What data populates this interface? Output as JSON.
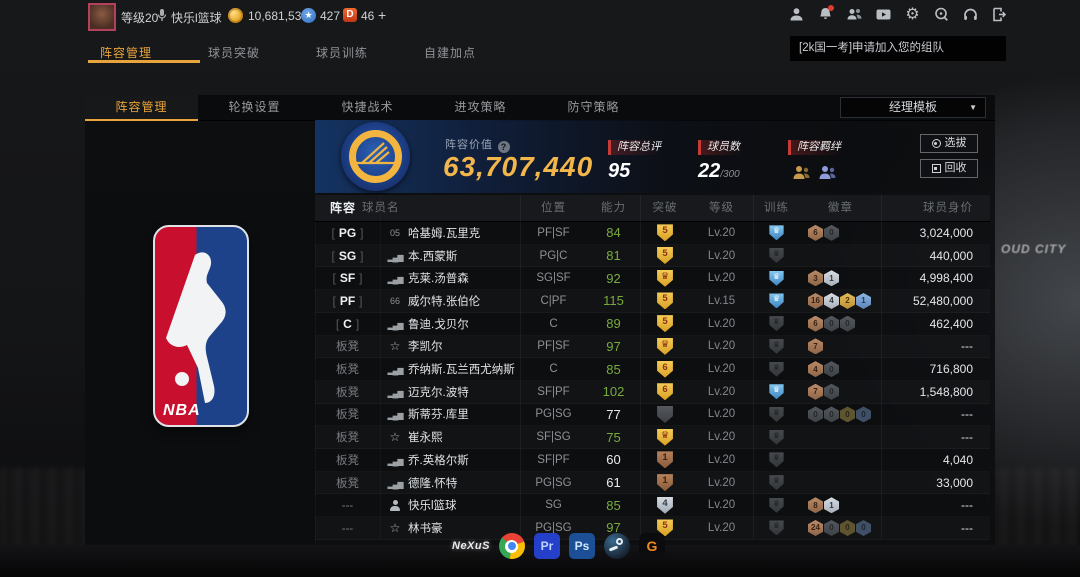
{
  "top_bar": {
    "level": "等级20",
    "username": "快乐l篮球",
    "coins": "10,681,538",
    "stars": "427",
    "diamond_letter": "D",
    "diamonds": "46",
    "plus": "+",
    "header_icons": [
      "user",
      "bell",
      "team",
      "video",
      "settings",
      "support",
      "headset",
      "exit"
    ]
  },
  "nav_tabs": [
    {
      "label": "阵容管理",
      "cls": "active"
    },
    {
      "label": "球员突破",
      "cls": ""
    },
    {
      "label": "球员训练",
      "cls": ""
    },
    {
      "label": "自建加点",
      "cls": ""
    }
  ],
  "notification": {
    "text": "[2k国一考]申请加入您的组队"
  },
  "background_text": "OUD CITY",
  "panel": {
    "tabs": [
      {
        "label": "阵容管理",
        "cls": "active"
      },
      {
        "label": "轮换设置",
        "cls": ""
      },
      {
        "label": "快捷战术",
        "cls": ""
      },
      {
        "label": "进攻策略",
        "cls": ""
      },
      {
        "label": "防守策略",
        "cls": ""
      }
    ],
    "template_dropdown": "经理模板",
    "nba_logo_text": "NBA",
    "header": {
      "value_label": "阵容价值",
      "value_help": "?",
      "value": "63,707,440",
      "stats": [
        {
          "label": "阵容总评",
          "value": "95",
          "suffix": ""
        },
        {
          "label": "球员数",
          "value": "22",
          "suffix": "/300"
        },
        {
          "label": "阵容羁绊",
          "value": "",
          "suffix": ""
        }
      ],
      "buttons": [
        {
          "label": "选拔",
          "icon_cls": "bi-select"
        },
        {
          "label": "回收",
          "icon_cls": "bi-recycle"
        }
      ]
    },
    "table": {
      "headers": [
        "阵容",
        "球员名",
        "位置",
        "能力",
        "突破",
        "等级",
        "训练",
        "徽章",
        "球员身价"
      ],
      "rows": [
        {
          "slot": "PG",
          "slot_cls": "slot-starter",
          "icon_cls": "icon-num",
          "icon_text": "05",
          "name": "哈基姆.瓦里克",
          "pos": "PF|SF",
          "ability": "84",
          "ab_cls": "ab-green",
          "bt_cls": "t-gold",
          "bt_glyph": "5",
          "level": "Lv.20",
          "train_cls": "tr-blue",
          "badges": [
            {
              "tier": "bronze",
              "n": "6"
            },
            {
              "tier": "gray",
              "n": "0"
            }
          ],
          "price": "3,024,000"
        },
        {
          "slot": "SG",
          "slot_cls": "slot-starter",
          "icon_cls": "icon-bars",
          "icon_text": "",
          "name": "本.西蒙斯",
          "pos": "PG|C",
          "ability": "81",
          "ab_cls": "ab-green",
          "bt_cls": "t-gold",
          "bt_glyph": "5",
          "level": "Lv.20",
          "train_cls": "tr-gray",
          "badges": [],
          "price": "440,000"
        },
        {
          "slot": "SF",
          "slot_cls": "slot-starter",
          "icon_cls": "icon-bars",
          "icon_text": "",
          "name": "克莱.汤普森",
          "pos": "SG|SF",
          "ability": "92",
          "ab_cls": "ab-green",
          "bt_cls": "t-gold",
          "bt_glyph": "♛",
          "level": "Lv.20",
          "train_cls": "tr-blue",
          "badges": [
            {
              "tier": "bronze",
              "n": "3"
            },
            {
              "tier": "silver",
              "n": "1"
            }
          ],
          "price": "4,998,400"
        },
        {
          "slot": "PF",
          "slot_cls": "slot-starter",
          "icon_cls": "icon-num",
          "icon_text": "66",
          "name": "威尔特.张伯伦",
          "pos": "C|PF",
          "ability": "115",
          "ab_cls": "ab-green",
          "bt_cls": "t-gold",
          "bt_glyph": "5",
          "level": "Lv.15",
          "train_cls": "tr-blue",
          "badges": [
            {
              "tier": "bronze",
              "n": "16"
            },
            {
              "tier": "silver",
              "n": "4"
            },
            {
              "tier": "gold",
              "n": "2"
            },
            {
              "tier": "blue",
              "n": "1"
            }
          ],
          "price": "52,480,000"
        },
        {
          "slot": "C",
          "slot_cls": "slot-starter",
          "icon_cls": "icon-bars",
          "icon_text": "",
          "name": "鲁迪.戈贝尔",
          "pos": "C",
          "ability": "89",
          "ab_cls": "ab-green",
          "bt_cls": "t-gold",
          "bt_glyph": "5",
          "level": "Lv.20",
          "train_cls": "tr-gray",
          "badges": [
            {
              "tier": "bronze",
              "n": "6"
            },
            {
              "tier": "gray",
              "n": "0"
            },
            {
              "tier": "gray",
              "n": "0"
            }
          ],
          "price": "462,400"
        },
        {
          "slot": "板凳",
          "slot_cls": "slot-bench",
          "icon_cls": "icon-star",
          "icon_text": "",
          "name": "李凯尔",
          "pos": "PF|SF",
          "ability": "97",
          "ab_cls": "ab-green",
          "bt_cls": "t-gold",
          "bt_glyph": "♛",
          "level": "Lv.20",
          "train_cls": "tr-gray",
          "badges": [
            {
              "tier": "bronze",
              "n": "7"
            }
          ],
          "price": "---"
        },
        {
          "slot": "板凳",
          "slot_cls": "slot-bench",
          "icon_cls": "icon-bars",
          "icon_text": "",
          "name": "乔纳斯.瓦兰西尤纳斯",
          "pos": "C",
          "ability": "85",
          "ab_cls": "ab-green",
          "bt_cls": "t-gold",
          "bt_glyph": "6",
          "level": "Lv.20",
          "train_cls": "tr-gray",
          "badges": [
            {
              "tier": "bronze",
              "n": "4"
            },
            {
              "tier": "gray",
              "n": "0"
            }
          ],
          "price": "716,800"
        },
        {
          "slot": "板凳",
          "slot_cls": "slot-bench",
          "icon_cls": "icon-bars",
          "icon_text": "",
          "name": "迈克尔.波特",
          "pos": "SF|PF",
          "ability": "102",
          "ab_cls": "ab-green",
          "bt_cls": "t-gold",
          "bt_glyph": "6",
          "level": "Lv.20",
          "train_cls": "tr-blue",
          "badges": [
            {
              "tier": "bronze",
              "n": "7"
            },
            {
              "tier": "gray",
              "n": "0"
            }
          ],
          "price": "1,548,800"
        },
        {
          "slot": "板凳",
          "slot_cls": "slot-bench",
          "icon_cls": "icon-bars",
          "icon_text": "",
          "name": "斯蒂芬.库里",
          "pos": "PG|SG",
          "ability": "77",
          "ab_cls": "ab-white",
          "bt_cls": "t-gray",
          "bt_glyph": "",
          "level": "Lv.20",
          "train_cls": "tr-gray",
          "badges": [
            {
              "tier": "gray",
              "n": "0"
            },
            {
              "tier": "gray",
              "n": "0"
            },
            {
              "tier": "golddim",
              "n": "0"
            },
            {
              "tier": "bluedim",
              "n": "0"
            }
          ],
          "price": "---"
        },
        {
          "slot": "板凳",
          "slot_cls": "slot-bench",
          "icon_cls": "icon-star",
          "icon_text": "",
          "name": "崔永熙",
          "pos": "SF|SG",
          "ability": "75",
          "ab_cls": "ab-green",
          "bt_cls": "t-gold",
          "bt_glyph": "♛",
          "level": "Lv.20",
          "train_cls": "tr-gray",
          "badges": [],
          "price": "---"
        },
        {
          "slot": "板凳",
          "slot_cls": "slot-bench",
          "icon_cls": "icon-bars",
          "icon_text": "",
          "name": "乔.英格尔斯",
          "pos": "SF|PF",
          "ability": "60",
          "ab_cls": "ab-white",
          "bt_cls": "t-bronze",
          "bt_glyph": "1",
          "level": "Lv.20",
          "train_cls": "tr-gray",
          "badges": [],
          "price": "4,040"
        },
        {
          "slot": "板凳",
          "slot_cls": "slot-bench",
          "icon_cls": "icon-bars",
          "icon_text": "",
          "name": "德隆.怀特",
          "pos": "PG|SG",
          "ability": "61",
          "ab_cls": "ab-white",
          "bt_cls": "t-bronze",
          "bt_glyph": "1",
          "level": "Lv.20",
          "train_cls": "tr-gray",
          "badges": [],
          "price": "33,000"
        },
        {
          "slot": "---",
          "slot_cls": "slot-none",
          "icon_cls": "icon-person",
          "icon_text": "",
          "name": "快乐l篮球",
          "pos": "SG",
          "ability": "85",
          "ab_cls": "ab-green",
          "bt_cls": "t-silver",
          "bt_glyph": "4",
          "level": "Lv.20",
          "train_cls": "tr-gray",
          "badges": [
            {
              "tier": "bronze",
              "n": "8"
            },
            {
              "tier": "silver",
              "n": "1"
            }
          ],
          "price": "---"
        },
        {
          "slot": "---",
          "slot_cls": "slot-none",
          "icon_cls": "icon-star",
          "icon_text": "",
          "name": "林书豪",
          "pos": "PG|SG",
          "ability": "97",
          "ab_cls": "ab-green",
          "bt_cls": "t-gold",
          "bt_glyph": "5",
          "level": "Lv.20",
          "train_cls": "tr-gray",
          "badges": [
            {
              "tier": "bronze",
              "n": "24"
            },
            {
              "tier": "gray",
              "n": "0"
            },
            {
              "tier": "golddim",
              "n": "0"
            },
            {
              "tier": "bluedim",
              "n": "0"
            }
          ],
          "price": "---"
        }
      ]
    }
  },
  "taskbar": [
    {
      "name": "nexus",
      "cls": "tk-nexus",
      "label": "NeXuS"
    },
    {
      "name": "chrome",
      "cls": "tk-chrome",
      "label": ""
    },
    {
      "name": "premiere",
      "cls": "tk-pr",
      "label": "Pr"
    },
    {
      "name": "photoshop",
      "cls": "tk-ps",
      "label": "Ps"
    },
    {
      "name": "steam",
      "cls": "tk-steam",
      "label": ""
    },
    {
      "name": "g-app",
      "cls": "tk-g",
      "label": "G"
    }
  ]
}
